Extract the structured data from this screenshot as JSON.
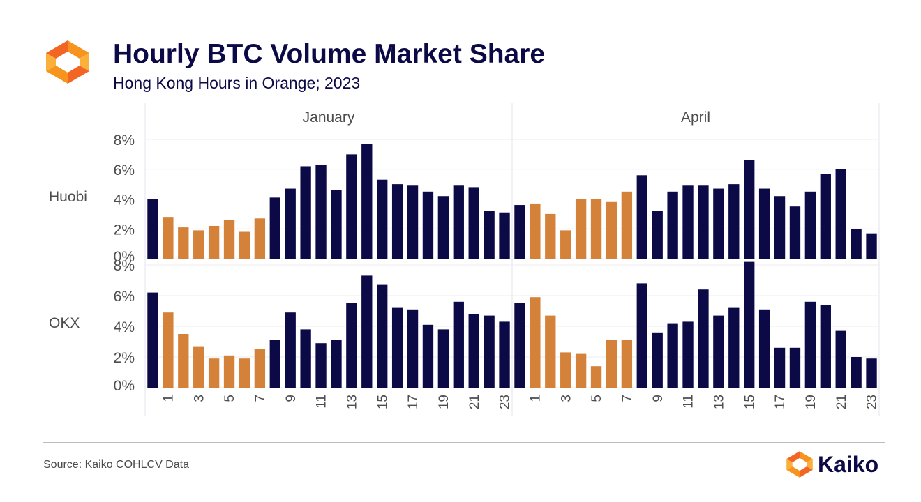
{
  "header": {
    "title": "Hourly BTC Volume Market Share",
    "subtitle": "Hong Kong Hours in Orange; 2023",
    "logo_icon": "kaiko-logo-icon"
  },
  "footer": {
    "source": "Source: Kaiko COHLCV Data",
    "brand_name": "Kaiko",
    "brand_icon": "kaiko-logo-icon"
  },
  "colors": {
    "hk_hours": "#d4813a",
    "other_hours": "#0b0a47",
    "title": "#0b0a47",
    "logo_orange": "#f7941d",
    "logo_yellow": "#fbb03b"
  },
  "chart_data": {
    "type": "bar",
    "facet_columns": [
      "January",
      "April"
    ],
    "facet_rows": [
      "Huobi",
      "OKX"
    ],
    "x": [
      0,
      1,
      2,
      3,
      4,
      5,
      6,
      7,
      8,
      9,
      10,
      11,
      12,
      13,
      14,
      15,
      16,
      17,
      18,
      19,
      20,
      21,
      22,
      23
    ],
    "x_tick_labels": [
      "1",
      "3",
      "5",
      "7",
      "9",
      "11",
      "13",
      "15",
      "17",
      "19",
      "21",
      "23"
    ],
    "y_tick_labels": [
      "0%",
      "2%",
      "4%",
      "6%",
      "8%"
    ],
    "ylim": [
      0,
      8
    ],
    "hk_hours": [
      1,
      2,
      3,
      4,
      5,
      6,
      7
    ],
    "grid": true,
    "panels": [
      {
        "row": "Huobi",
        "column": "January",
        "values": [
          4.0,
          2.8,
          2.1,
          1.9,
          2.2,
          2.6,
          1.8,
          2.7,
          4.1,
          4.7,
          6.2,
          6.3,
          4.6,
          7.0,
          7.7,
          5.3,
          5.0,
          4.9,
          4.5,
          4.2,
          4.9,
          4.8,
          3.2,
          3.1
        ]
      },
      {
        "row": "Huobi",
        "column": "April",
        "values": [
          3.6,
          3.7,
          3.0,
          1.9,
          4.0,
          4.0,
          3.8,
          4.5,
          5.6,
          3.2,
          4.5,
          4.9,
          4.9,
          4.7,
          5.0,
          6.6,
          4.7,
          4.2,
          3.5,
          4.5,
          5.7,
          6.0,
          2.0,
          1.7
        ]
      },
      {
        "row": "OKX",
        "column": "January",
        "values": [
          6.2,
          4.9,
          3.5,
          2.7,
          1.9,
          2.1,
          1.9,
          2.5,
          3.1,
          4.9,
          3.8,
          2.9,
          3.1,
          5.5,
          7.3,
          6.7,
          5.2,
          5.1,
          4.1,
          3.8,
          5.6,
          4.8,
          4.7,
          4.3
        ]
      },
      {
        "row": "OKX",
        "column": "April",
        "values": [
          5.5,
          5.9,
          4.7,
          2.3,
          2.2,
          1.4,
          3.1,
          3.1,
          6.8,
          3.6,
          4.2,
          4.3,
          6.4,
          4.7,
          5.2,
          8.2,
          5.1,
          2.6,
          2.6,
          5.6,
          5.4,
          3.7,
          2.0,
          1.9
        ]
      }
    ]
  }
}
